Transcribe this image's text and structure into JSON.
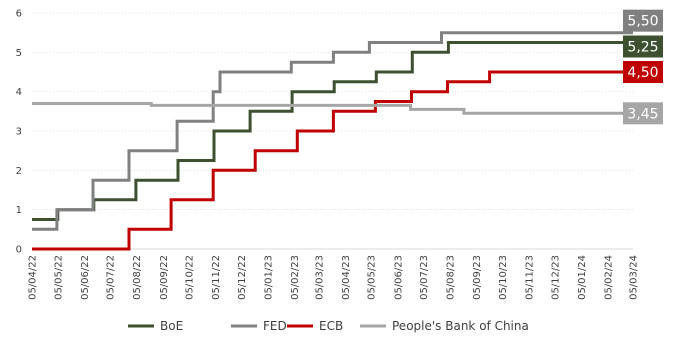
{
  "chart_data": {
    "type": "line",
    "step": true,
    "x_ticks": [
      "05/04/22",
      "05/05/22",
      "05/06/22",
      "05/07/22",
      "05/08/22",
      "05/09/22",
      "05/10/22",
      "05/11/22",
      "05/12/22",
      "05/01/23",
      "05/02/23",
      "05/03/23",
      "05/04/23",
      "05/05/23",
      "05/06/23",
      "05/07/23",
      "05/08/23",
      "05/09/23",
      "05/10/23",
      "05/11/23",
      "05/12/23",
      "05/01/24",
      "05/02/24",
      "05/03/24"
    ],
    "ylim": [
      0,
      6
    ],
    "y_ticks": [
      0,
      1,
      2,
      3,
      4,
      5,
      6
    ],
    "grid": true,
    "legend_position": "bottom",
    "series": [
      {
        "name": "BoE",
        "color": "#3d5130",
        "end_label": "5,25",
        "points": [
          {
            "x": "2022-04-05",
            "y": 0.75
          },
          {
            "x": "2022-05-05",
            "y": 1.0
          },
          {
            "x": "2022-06-16",
            "y": 1.25
          },
          {
            "x": "2022-08-04",
            "y": 1.75
          },
          {
            "x": "2022-09-22",
            "y": 2.25
          },
          {
            "x": "2022-11-03",
            "y": 3.0
          },
          {
            "x": "2022-12-15",
            "y": 3.5
          },
          {
            "x": "2023-02-02",
            "y": 4.0
          },
          {
            "x": "2023-03-23",
            "y": 4.25
          },
          {
            "x": "2023-05-11",
            "y": 4.5
          },
          {
            "x": "2023-06-22",
            "y": 5.0
          },
          {
            "x": "2023-08-03",
            "y": 5.25
          },
          {
            "x": "2024-03-05",
            "y": 5.25
          }
        ]
      },
      {
        "name": "FED",
        "color": "#808080",
        "end_label": "5,50",
        "points": [
          {
            "x": "2022-04-05",
            "y": 0.5
          },
          {
            "x": "2022-05-04",
            "y": 1.0
          },
          {
            "x": "2022-06-15",
            "y": 1.75
          },
          {
            "x": "2022-07-27",
            "y": 2.5
          },
          {
            "x": "2022-09-21",
            "y": 3.25
          },
          {
            "x": "2022-11-02",
            "y": 4.0
          },
          {
            "x": "2022-11-10",
            "y": 4.5
          },
          {
            "x": "2023-02-01",
            "y": 4.75
          },
          {
            "x": "2023-03-22",
            "y": 5.0
          },
          {
            "x": "2023-05-03",
            "y": 5.25
          },
          {
            "x": "2023-07-26",
            "y": 5.5
          },
          {
            "x": "2024-03-05",
            "y": 5.5
          }
        ]
      },
      {
        "name": "ECB",
        "color": "#c00000",
        "end_label": "4,50",
        "points": [
          {
            "x": "2022-04-05",
            "y": 0.0
          },
          {
            "x": "2022-07-27",
            "y": 0.5
          },
          {
            "x": "2022-09-14",
            "y": 1.25
          },
          {
            "x": "2022-11-02",
            "y": 2.0
          },
          {
            "x": "2022-12-21",
            "y": 2.5
          },
          {
            "x": "2023-02-08",
            "y": 3.0
          },
          {
            "x": "2023-03-22",
            "y": 3.5
          },
          {
            "x": "2023-05-10",
            "y": 3.75
          },
          {
            "x": "2023-06-21",
            "y": 4.0
          },
          {
            "x": "2023-08-02",
            "y": 4.25
          },
          {
            "x": "2023-09-20",
            "y": 4.5
          },
          {
            "x": "2024-03-05",
            "y": 4.5
          }
        ]
      },
      {
        "name": "People's Bank of China",
        "color": "#a6a6a6",
        "end_label": "3,45",
        "points": [
          {
            "x": "2022-04-05",
            "y": 3.7
          },
          {
            "x": "2022-08-22",
            "y": 3.65
          },
          {
            "x": "2023-06-20",
            "y": 3.55
          },
          {
            "x": "2023-08-21",
            "y": 3.45
          },
          {
            "x": "2024-03-05",
            "y": 3.45
          }
        ]
      }
    ]
  }
}
